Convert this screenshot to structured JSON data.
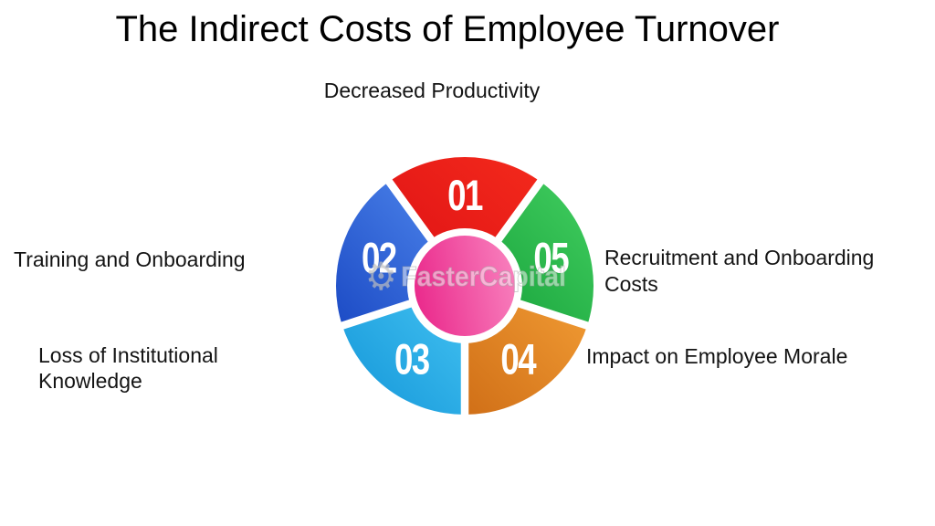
{
  "title": "The Indirect Costs of Employee Turnover",
  "background_color": "#FFFFFF",
  "title_color": "#000000",
  "label_color": "#141414",
  "watermark": {
    "text": "FasterCapital",
    "icon": "gear-icon"
  },
  "diagram": {
    "type": "segmented-circle",
    "segment_count": 5,
    "number_color": "#FFFFFF",
    "separator_color": "#FFFFFF",
    "center": {
      "color_start": "#EA2A8C",
      "color_end": "#F87EBC"
    },
    "segments": [
      {
        "number": "01",
        "label": "Decreased Productivity",
        "position": "top",
        "color_start": "#DD1014",
        "color_end": "#F42A1C"
      },
      {
        "number": "02",
        "label": "Training and Onboarding",
        "position": "left",
        "color_start": "#1C4BC5",
        "color_end": "#5189EE"
      },
      {
        "number": "03",
        "label": "Loss of Institutional Knowledge",
        "position": "bottom-left",
        "color_start": "#1395D8",
        "color_end": "#44C3F2"
      },
      {
        "number": "04",
        "label": "Impact on Employee Morale",
        "position": "bottom-right",
        "color_start": "#D06F17",
        "color_end": "#F29D35"
      },
      {
        "number": "05",
        "label": "Recruitment and Onboarding Costs",
        "position": "right",
        "color_start": "#149F38",
        "color_end": "#42CE60"
      }
    ]
  }
}
